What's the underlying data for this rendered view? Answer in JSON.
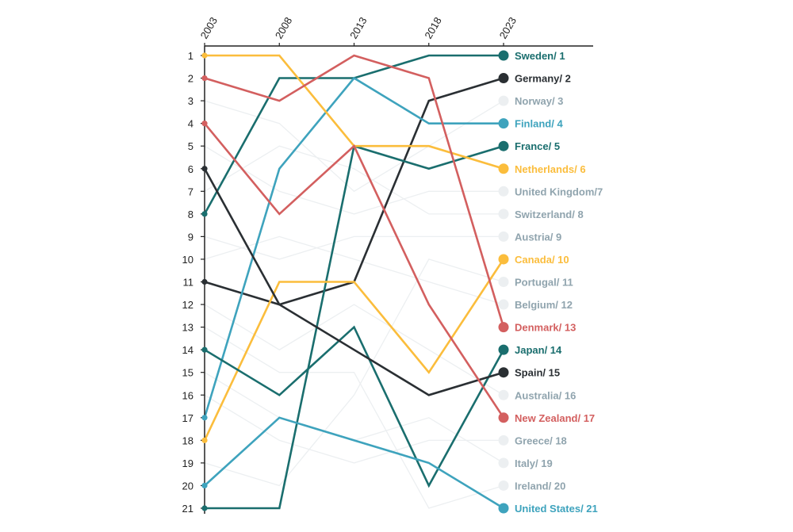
{
  "chart_data": {
    "type": "line",
    "subtype": "bump",
    "title": "",
    "x": [
      "2003",
      "2008",
      "2013",
      "2018",
      "2023"
    ],
    "ylim": [
      1,
      21
    ],
    "y_ticks": [
      "1",
      "2",
      "3",
      "4",
      "5",
      "6",
      "7",
      "8",
      "9",
      "10",
      "11",
      "12",
      "13",
      "14",
      "15",
      "16",
      "17",
      "18",
      "19",
      "20",
      "21"
    ],
    "y_inverted": true,
    "colors": {
      "teal": "#1a6e6e",
      "dark": "#2a2f33",
      "blue": "#3ea3bd",
      "yellow": "#fbbd3c",
      "red": "#d35f5f",
      "muted": "#eceff1",
      "muted_text": "#90a4ae"
    },
    "series": [
      {
        "name": "Sweden",
        "label": "Sweden/ 1",
        "color": "teal",
        "highlight": true,
        "values": [
          8,
          2,
          2,
          1,
          1
        ]
      },
      {
        "name": "Germany",
        "label": "Germany/ 2",
        "color": "dark",
        "highlight": true,
        "values": [
          11,
          12,
          11,
          3,
          2
        ]
      },
      {
        "name": "Norway",
        "label": "Norway/ 3",
        "color": "muted",
        "highlight": false,
        "values": [
          3,
          4,
          7,
          5,
          3
        ]
      },
      {
        "name": "Finland",
        "label": "Finland/ 4",
        "color": "blue",
        "highlight": true,
        "values": [
          17,
          6,
          2,
          4,
          4
        ]
      },
      {
        "name": "France",
        "label": "France/ 5",
        "color": "teal",
        "highlight": true,
        "values": [
          21,
          21,
          5,
          6,
          5
        ]
      },
      {
        "name": "Netherlands",
        "label": "Netherlands/ 6",
        "color": "yellow",
        "highlight": true,
        "values": [
          1,
          1,
          5,
          5,
          6
        ]
      },
      {
        "name": "United Kingdom",
        "label": "United Kingdom/7",
        "color": "muted",
        "highlight": false,
        "values": [
          5,
          7,
          8,
          7,
          7
        ]
      },
      {
        "name": "Switzerland",
        "label": "Switzerland/ 8",
        "color": "muted",
        "highlight": false,
        "values": [
          7,
          5,
          6,
          8,
          8
        ]
      },
      {
        "name": "Austria",
        "label": "Austria/ 9",
        "color": "muted",
        "highlight": false,
        "values": [
          9,
          10,
          9,
          9,
          9
        ]
      },
      {
        "name": "Canada",
        "label": "Canada/ 10",
        "color": "yellow",
        "highlight": true,
        "values": [
          18,
          11,
          11,
          15,
          10
        ]
      },
      {
        "name": "Portugal",
        "label": "Portugal/ 11",
        "color": "muted",
        "highlight": false,
        "values": [
          19,
          20,
          16,
          10,
          11
        ]
      },
      {
        "name": "Belgium",
        "label": "Belgium/ 12",
        "color": "muted",
        "highlight": false,
        "values": [
          10,
          9,
          10,
          11,
          12
        ]
      },
      {
        "name": "Denmark",
        "label": "Denmark/ 13",
        "color": "red",
        "highlight": true,
        "values": [
          2,
          3,
          1,
          2,
          13
        ]
      },
      {
        "name": "Japan",
        "label": "Japan/ 14",
        "color": "teal",
        "highlight": true,
        "values": [
          14,
          16,
          13,
          20,
          14
        ]
      },
      {
        "name": "Spain",
        "label": "Spain/ 15",
        "color": "dark",
        "highlight": true,
        "values": [
          6,
          12,
          14,
          16,
          15
        ]
      },
      {
        "name": "Australia",
        "label": "Australia/ 16",
        "color": "muted",
        "highlight": false,
        "values": [
          12,
          14,
          12,
          14,
          16
        ]
      },
      {
        "name": "New Zealand",
        "label": "New Zealand/ 17",
        "color": "red",
        "highlight": true,
        "values": [
          4,
          8,
          5,
          12,
          17
        ]
      },
      {
        "name": "Greece",
        "label": "Greece/ 18",
        "color": "muted",
        "highlight": false,
        "values": [
          16,
          18,
          19,
          18,
          18
        ]
      },
      {
        "name": "Italy",
        "label": "Italy/ 19",
        "color": "muted",
        "highlight": false,
        "values": [
          15,
          17,
          18,
          17,
          19
        ]
      },
      {
        "name": "Ireland",
        "label": "Ireland/ 20",
        "color": "muted",
        "highlight": false,
        "values": [
          13,
          15,
          15,
          21,
          20
        ]
      },
      {
        "name": "United States",
        "label": "United States/ 21",
        "color": "blue",
        "highlight": true,
        "values": [
          20,
          17,
          18,
          19,
          21
        ]
      }
    ]
  }
}
